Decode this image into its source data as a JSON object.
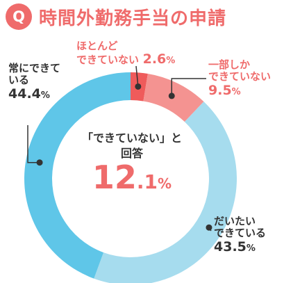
{
  "header": {
    "badge": "Q",
    "title": "時間外勤務手当の申請"
  },
  "colors": {
    "accent": "#ef6b6b",
    "text": "#333333",
    "bg_light": "#fde8e8"
  },
  "center": {
    "caption_line1": "「できていない」と",
    "caption_line2": "回答",
    "value_int": "12",
    "value_dec": ".1",
    "value_unit": "%"
  },
  "labels": {
    "hardly": {
      "line1": "ほとんど",
      "line2": "できていない",
      "value": "2.6",
      "unit": "%"
    },
    "partly": {
      "line1": "一部しか",
      "line2": "できていない",
      "value": "9.5",
      "unit": "%"
    },
    "mostly": {
      "line1": "だいたい",
      "line2": "できている",
      "value": "43.5",
      "unit": "%"
    },
    "always": {
      "line1": "常にできて",
      "line2": "いる",
      "value": "44.4",
      "unit": "%"
    }
  },
  "chart_data": {
    "type": "pie",
    "donut": true,
    "start": "12 o'clock",
    "direction": "clockwise",
    "categories": [
      "ほとんどできていない",
      "一部しかできていない",
      "だいたいできている",
      "常にできている"
    ],
    "values": [
      2.6,
      9.5,
      43.5,
      44.4
    ],
    "unit": "%",
    "colors": [
      "#ef5b5b",
      "#f49391",
      "#a6dcee",
      "#5fc6e8"
    ],
    "center_annotation": {
      "text": "「できていない」と回答",
      "value": 12.1
    }
  }
}
